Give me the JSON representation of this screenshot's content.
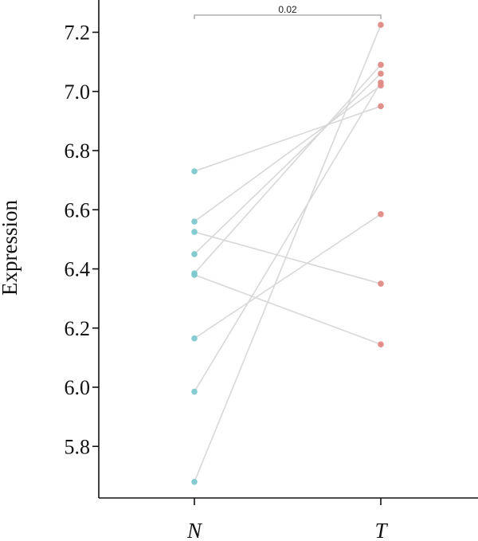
{
  "chart_data": {
    "type": "scatter",
    "ylabel": "Expression",
    "categories": [
      "N",
      "T"
    ],
    "ylim": [
      5.62,
      7.29
    ],
    "yticks": [
      "5.8",
      "6.0",
      "6.2",
      "6.4",
      "6.6",
      "6.8",
      "7.0",
      "7.2"
    ],
    "grid": false,
    "colors": {
      "N": "#7ec8d0",
      "T": "#e08a86",
      "pair_line": "#d8d8d8",
      "axis": "#111111"
    },
    "pairs": [
      {
        "N": 6.73,
        "T": 6.95
      },
      {
        "N": 6.56,
        "T": 7.02
      },
      {
        "N": 6.525,
        "T": 6.35
      },
      {
        "N": 6.45,
        "T": 7.06
      },
      {
        "N": 6.385,
        "T": 7.09
      },
      {
        "N": 6.38,
        "T": 6.145
      },
      {
        "N": 6.165,
        "T": 6.585
      },
      {
        "N": 5.985,
        "T": 7.03
      },
      {
        "N": 5.68,
        "T": 7.225
      }
    ],
    "annotation": {
      "text": "0.02"
    }
  }
}
